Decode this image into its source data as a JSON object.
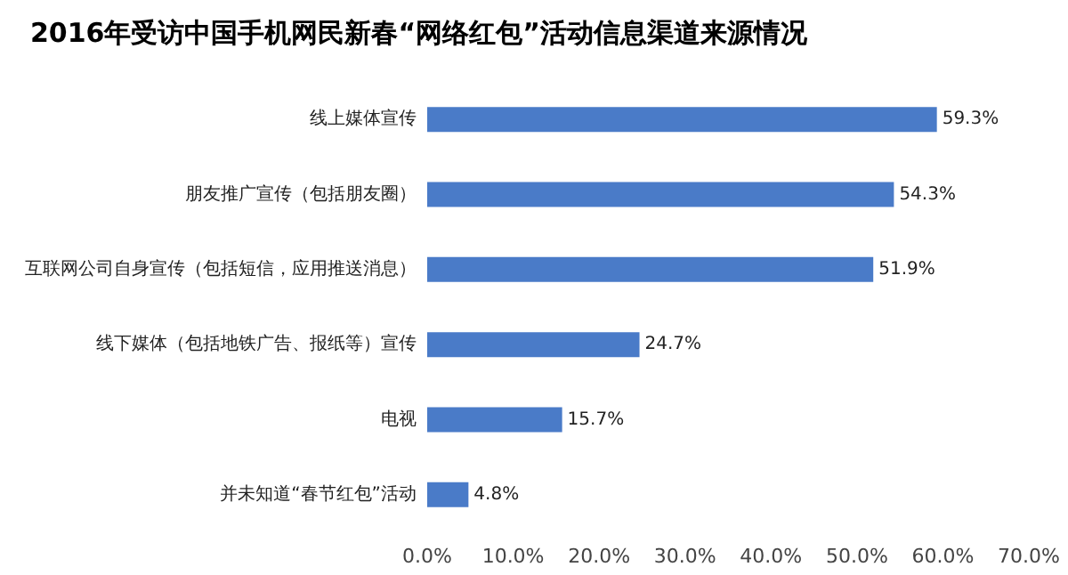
{
  "chart_data": {
    "type": "bar",
    "orientation": "horizontal",
    "title": "2016年受访中国手机网民新春“网络红包”活动信息渠道来源情况",
    "categories": [
      "线上媒体宣传",
      "朋友推广宣传（包括朋友圈）",
      "互联网公司自身宣传（包括短信，应用推送消息）",
      "线下媒体（包括地铁广告、报纸等）宣传",
      "电视",
      "并未知道“春节红包”活动"
    ],
    "values": [
      59.3,
      54.3,
      51.9,
      24.7,
      15.7,
      4.8
    ],
    "value_labels": [
      "59.3%",
      "54.3%",
      "51.9%",
      "24.7%",
      "15.7%",
      "4.8%"
    ],
    "color": "#4a7bc8",
    "xlim": [
      0,
      70
    ],
    "xticks": [
      {
        "value": 0,
        "label": "0.0%"
      },
      {
        "value": 10,
        "label": "10.0%"
      },
      {
        "value": 20,
        "label": "20.0%"
      },
      {
        "value": 30,
        "label": "30.0%"
      },
      {
        "value": 40,
        "label": "40.0%"
      },
      {
        "value": 50,
        "label": "50.0%"
      },
      {
        "value": 60,
        "label": "60.0%"
      },
      {
        "value": 70,
        "label": "70.0%"
      }
    ],
    "grid": false
  }
}
